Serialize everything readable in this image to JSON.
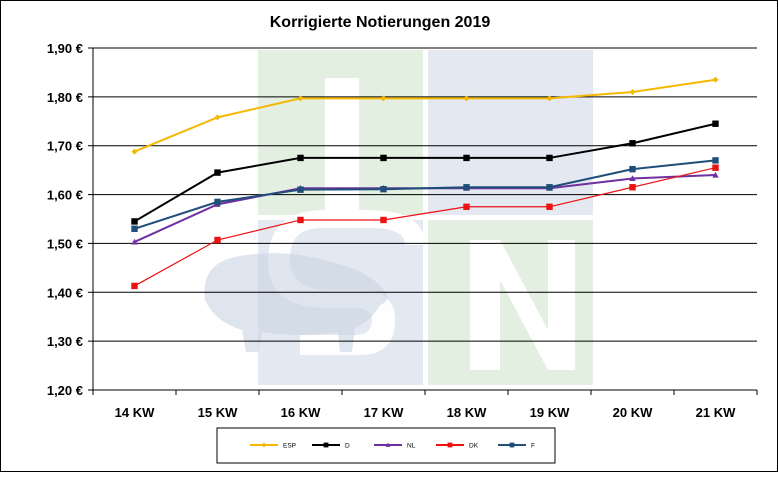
{
  "chart_data": {
    "type": "line",
    "title": "Korrigierte Notierungen 2019",
    "categories": [
      "14 KW",
      "15 KW",
      "16 KW",
      "17 KW",
      "18 KW",
      "19 KW",
      "20 KW",
      "21 KW"
    ],
    "ylim": [
      1.2,
      1.9
    ],
    "yticks": [
      1.2,
      1.3,
      1.4,
      1.5,
      1.6,
      1.7,
      1.8,
      1.9
    ],
    "ytick_labels": [
      "1,20 €",
      "1,30 €",
      "1,40 €",
      "1,50 €",
      "1,60 €",
      "1,70 €",
      "1,80 €",
      "1,90 €"
    ],
    "grid": "horizontal",
    "legend_position": "bottom",
    "watermark": "ISN",
    "series": [
      {
        "name": "ESP",
        "color": "#f5b800",
        "marker": "diamond",
        "values": [
          1.688,
          1.758,
          1.797,
          1.797,
          1.797,
          1.797,
          1.81,
          1.835
        ]
      },
      {
        "name": "D",
        "color": "#000000",
        "marker": "square",
        "values": [
          1.545,
          1.645,
          1.675,
          1.675,
          1.675,
          1.675,
          1.705,
          1.745
        ]
      },
      {
        "name": "NL",
        "color": "#7030a0",
        "marker": "triangle",
        "values": [
          1.503,
          1.58,
          1.613,
          1.613,
          1.613,
          1.613,
          1.633,
          1.64
        ]
      },
      {
        "name": "DK",
        "color": "#ee1111",
        "marker": "square",
        "values": [
          1.413,
          1.507,
          1.548,
          1.548,
          1.575,
          1.575,
          1.615,
          1.655
        ]
      },
      {
        "name": "F",
        "color": "#1f4e79",
        "marker": "square",
        "values": [
          1.53,
          1.585,
          1.61,
          1.611,
          1.615,
          1.615,
          1.652,
          1.67
        ]
      }
    ]
  }
}
